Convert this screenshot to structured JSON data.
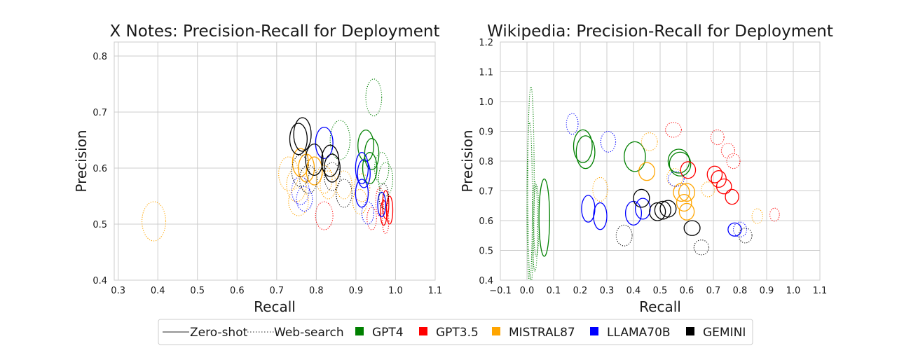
{
  "colors": {
    "GPT4": "#008000",
    "GPT3.5": "#ff0000",
    "MISTRAL87": "#ffa500",
    "LLAMA70B": "#0000ff",
    "GEMINI": "#000000",
    "grid": "#cccccc",
    "line_style_sample": "#555555"
  },
  "legend": {
    "placement": "bottom-center",
    "line_styles": [
      {
        "label": "Zero-shot",
        "style": "solid"
      },
      {
        "label": "Web-search",
        "style": "dotted"
      }
    ],
    "models": [
      {
        "label": "GPT4",
        "color": "#008000"
      },
      {
        "label": "GPT3.5",
        "color": "#ff0000"
      },
      {
        "label": "MISTRAL87",
        "color": "#ffa500"
      },
      {
        "label": "LLAMA70B",
        "color": "#0000ff"
      },
      {
        "label": "GEMINI",
        "color": "#000000"
      }
    ]
  },
  "chart_data": [
    {
      "type": "scatter",
      "marker": "ellipse",
      "title": "X Notes: Precision-Recall for Deployment",
      "xlabel": "Recall",
      "ylabel": "Precision",
      "xlim": [
        0.29,
        1.1
      ],
      "ylim": [
        0.4,
        0.825
      ],
      "xticks": [
        "0.3",
        "0.4",
        "0.5",
        "0.6",
        "0.7",
        "0.8",
        "0.9",
        "1.0",
        "1.1"
      ],
      "xtick_values": [
        0.3,
        0.4,
        0.5,
        0.6,
        0.7,
        0.8,
        0.9,
        1.0,
        1.1
      ],
      "yticks": [
        "0.4",
        "0.5",
        "0.6",
        "0.7",
        "0.8"
      ],
      "ytick_values": [
        0.4,
        0.5,
        0.6,
        0.7,
        0.8
      ],
      "grid": true,
      "points": [
        {
          "model": "GPT4",
          "style": "dotted",
          "x": 0.945,
          "y": 0.726,
          "rx": 0.02,
          "ry": 0.033
        },
        {
          "model": "GPT4",
          "style": "dotted",
          "x": 0.86,
          "y": 0.65,
          "rx": 0.025,
          "ry": 0.035
        },
        {
          "model": "GPT4",
          "style": "solid",
          "x": 0.925,
          "y": 0.64,
          "rx": 0.02,
          "ry": 0.028
        },
        {
          "model": "GPT4",
          "style": "solid",
          "x": 0.94,
          "y": 0.625,
          "rx": 0.018,
          "ry": 0.028
        },
        {
          "model": "GPT4",
          "style": "solid",
          "x": 0.935,
          "y": 0.6,
          "rx": 0.018,
          "ry": 0.028
        },
        {
          "model": "GPT4",
          "style": "dotted",
          "x": 0.965,
          "y": 0.6,
          "rx": 0.018,
          "ry": 0.028
        },
        {
          "model": "GPT4",
          "style": "dotted",
          "x": 0.975,
          "y": 0.58,
          "rx": 0.018,
          "ry": 0.03
        },
        {
          "model": "GPT3.5",
          "style": "solid",
          "x": 0.975,
          "y": 0.535,
          "rx": 0.008,
          "ry": 0.025
        },
        {
          "model": "GPT3.5",
          "style": "solid",
          "x": 0.985,
          "y": 0.525,
          "rx": 0.008,
          "ry": 0.025
        },
        {
          "model": "GPT3.5",
          "style": "solid",
          "x": 0.97,
          "y": 0.52,
          "rx": 0.008,
          "ry": 0.022
        },
        {
          "model": "GPT3.5",
          "style": "dotted",
          "x": 0.96,
          "y": 0.54,
          "rx": 0.01,
          "ry": 0.025
        },
        {
          "model": "GPT3.5",
          "style": "dotted",
          "x": 0.975,
          "y": 0.505,
          "rx": 0.008,
          "ry": 0.022
        },
        {
          "model": "GPT3.5",
          "style": "dotted",
          "x": 0.82,
          "y": 0.515,
          "rx": 0.022,
          "ry": 0.025
        },
        {
          "model": "GPT3.5",
          "style": "dotted",
          "x": 0.94,
          "y": 0.51,
          "rx": 0.012,
          "ry": 0.02
        },
        {
          "model": "MISTRAL87",
          "style": "dotted",
          "x": 0.39,
          "y": 0.505,
          "rx": 0.03,
          "ry": 0.035
        },
        {
          "model": "MISTRAL87",
          "style": "dotted",
          "x": 0.73,
          "y": 0.59,
          "rx": 0.025,
          "ry": 0.03
        },
        {
          "model": "MISTRAL87",
          "style": "dotted",
          "x": 0.75,
          "y": 0.57,
          "rx": 0.025,
          "ry": 0.03
        },
        {
          "model": "MISTRAL87",
          "style": "dotted",
          "x": 0.755,
          "y": 0.54,
          "rx": 0.025,
          "ry": 0.025
        },
        {
          "model": "MISTRAL87",
          "style": "solid",
          "x": 0.76,
          "y": 0.61,
          "rx": 0.02,
          "ry": 0.025
        },
        {
          "model": "MISTRAL87",
          "style": "solid",
          "x": 0.775,
          "y": 0.6,
          "rx": 0.02,
          "ry": 0.025
        },
        {
          "model": "MISTRAL87",
          "style": "solid",
          "x": 0.795,
          "y": 0.595,
          "rx": 0.02,
          "ry": 0.025
        },
        {
          "model": "MISTRAL87",
          "style": "dotted",
          "x": 0.82,
          "y": 0.58,
          "rx": 0.02,
          "ry": 0.025
        },
        {
          "model": "MISTRAL87",
          "style": "dotted",
          "x": 0.83,
          "y": 0.57,
          "rx": 0.02,
          "ry": 0.025
        },
        {
          "model": "MISTRAL87",
          "style": "dotted",
          "x": 0.87,
          "y": 0.57,
          "rx": 0.02,
          "ry": 0.025
        },
        {
          "model": "MISTRAL87",
          "style": "dotted",
          "x": 0.915,
          "y": 0.565,
          "rx": 0.02,
          "ry": 0.025
        },
        {
          "model": "MISTRAL87",
          "style": "dotted",
          "x": 0.91,
          "y": 0.54,
          "rx": 0.018,
          "ry": 0.022
        },
        {
          "model": "LLAMA70B",
          "style": "solid",
          "x": 0.82,
          "y": 0.645,
          "rx": 0.022,
          "ry": 0.028
        },
        {
          "model": "LLAMA70B",
          "style": "solid",
          "x": 0.915,
          "y": 0.6,
          "rx": 0.016,
          "ry": 0.028
        },
        {
          "model": "LLAMA70B",
          "style": "solid",
          "x": 0.92,
          "y": 0.59,
          "rx": 0.016,
          "ry": 0.025
        },
        {
          "model": "LLAMA70B",
          "style": "solid",
          "x": 0.915,
          "y": 0.555,
          "rx": 0.016,
          "ry": 0.025
        },
        {
          "model": "LLAMA70B",
          "style": "solid",
          "x": 0.965,
          "y": 0.535,
          "rx": 0.01,
          "ry": 0.022
        },
        {
          "model": "LLAMA70B",
          "style": "dotted",
          "x": 0.76,
          "y": 0.56,
          "rx": 0.022,
          "ry": 0.025
        },
        {
          "model": "LLAMA70B",
          "style": "dotted",
          "x": 0.77,
          "y": 0.545,
          "rx": 0.02,
          "ry": 0.022
        },
        {
          "model": "LLAMA70B",
          "style": "dotted",
          "x": 0.93,
          "y": 0.52,
          "rx": 0.015,
          "ry": 0.02
        },
        {
          "model": "GEMINI",
          "style": "solid",
          "x": 0.765,
          "y": 0.66,
          "rx": 0.022,
          "ry": 0.03
        },
        {
          "model": "GEMINI",
          "style": "solid",
          "x": 0.755,
          "y": 0.652,
          "rx": 0.022,
          "ry": 0.028
        },
        {
          "model": "GEMINI",
          "style": "solid",
          "x": 0.795,
          "y": 0.615,
          "rx": 0.022,
          "ry": 0.028
        },
        {
          "model": "GEMINI",
          "style": "solid",
          "x": 0.835,
          "y": 0.613,
          "rx": 0.022,
          "ry": 0.028
        },
        {
          "model": "GEMINI",
          "style": "solid",
          "x": 0.84,
          "y": 0.6,
          "rx": 0.02,
          "ry": 0.025
        },
        {
          "model": "GEMINI",
          "style": "dotted",
          "x": 0.76,
          "y": 0.595,
          "rx": 0.022,
          "ry": 0.028
        },
        {
          "model": "GEMINI",
          "style": "dotted",
          "x": 0.78,
          "y": 0.58,
          "rx": 0.022,
          "ry": 0.025
        },
        {
          "model": "GEMINI",
          "style": "dotted",
          "x": 0.84,
          "y": 0.585,
          "rx": 0.02,
          "ry": 0.025
        },
        {
          "model": "GEMINI",
          "style": "dotted",
          "x": 0.87,
          "y": 0.555,
          "rx": 0.02,
          "ry": 0.025
        },
        {
          "model": "GEMINI",
          "style": "dotted",
          "x": 0.97,
          "y": 0.55,
          "rx": 0.012,
          "ry": 0.022
        }
      ]
    },
    {
      "type": "scatter",
      "marker": "ellipse",
      "title": "Wikipedia: Precision-Recall for Deployment",
      "xlabel": "Recall",
      "ylabel": "Precision",
      "xlim": [
        -0.1,
        1.1
      ],
      "ylim": [
        0.4,
        1.2
      ],
      "xticks": [
        "−0.1",
        "0.0",
        "0.1",
        "0.2",
        "0.3",
        "0.4",
        "0.5",
        "0.6",
        "0.7",
        "0.8",
        "0.9",
        "1.0",
        "1.1"
      ],
      "xtick_values": [
        -0.1,
        0.0,
        0.1,
        0.2,
        0.3,
        0.4,
        0.5,
        0.6,
        0.7,
        0.8,
        0.9,
        1.0,
        1.1
      ],
      "yticks": [
        "0.4",
        "0.5",
        "0.6",
        "0.7",
        "0.8",
        "0.9",
        "1.0",
        "1.1",
        "1.2"
      ],
      "ytick_values": [
        0.4,
        0.5,
        0.6,
        0.7,
        0.8,
        0.9,
        1.0,
        1.1,
        1.2
      ],
      "grid": true,
      "points": [
        {
          "model": "GPT4",
          "style": "dotted",
          "x": 0.015,
          "y": 0.72,
          "rx": 0.012,
          "ry": 0.33
        },
        {
          "model": "GPT4",
          "style": "dotted",
          "x": 0.01,
          "y": 0.66,
          "rx": 0.01,
          "ry": 0.27
        },
        {
          "model": "GPT4",
          "style": "dotted",
          "x": 0.03,
          "y": 0.58,
          "rx": 0.01,
          "ry": 0.15
        },
        {
          "model": "GPT4",
          "style": "dotted",
          "x": 0.035,
          "y": 0.6,
          "rx": 0.01,
          "ry": 0.12
        },
        {
          "model": "GPT4",
          "style": "solid",
          "x": 0.065,
          "y": 0.61,
          "rx": 0.02,
          "ry": 0.13
        },
        {
          "model": "GPT4",
          "style": "solid",
          "x": 0.21,
          "y": 0.85,
          "rx": 0.035,
          "ry": 0.055
        },
        {
          "model": "GPT4",
          "style": "solid",
          "x": 0.22,
          "y": 0.83,
          "rx": 0.035,
          "ry": 0.055
        },
        {
          "model": "GPT4",
          "style": "solid",
          "x": 0.405,
          "y": 0.815,
          "rx": 0.04,
          "ry": 0.05
        },
        {
          "model": "GPT4",
          "style": "solid",
          "x": 0.57,
          "y": 0.8,
          "rx": 0.04,
          "ry": 0.04
        },
        {
          "model": "GPT4",
          "style": "solid",
          "x": 0.575,
          "y": 0.79,
          "rx": 0.04,
          "ry": 0.04
        },
        {
          "model": "GPT3.5",
          "style": "dotted",
          "x": 0.55,
          "y": 0.905,
          "rx": 0.03,
          "ry": 0.025
        },
        {
          "model": "GPT3.5",
          "style": "dotted",
          "x": 0.715,
          "y": 0.88,
          "rx": 0.025,
          "ry": 0.025
        },
        {
          "model": "GPT3.5",
          "style": "dotted",
          "x": 0.755,
          "y": 0.835,
          "rx": 0.025,
          "ry": 0.025
        },
        {
          "model": "GPT3.5",
          "style": "dotted",
          "x": 0.775,
          "y": 0.8,
          "rx": 0.025,
          "ry": 0.025
        },
        {
          "model": "GPT3.5",
          "style": "solid",
          "x": 0.605,
          "y": 0.77,
          "rx": 0.028,
          "ry": 0.028
        },
        {
          "model": "GPT3.5",
          "style": "solid",
          "x": 0.705,
          "y": 0.755,
          "rx": 0.028,
          "ry": 0.028
        },
        {
          "model": "GPT3.5",
          "style": "solid",
          "x": 0.72,
          "y": 0.74,
          "rx": 0.028,
          "ry": 0.028
        },
        {
          "model": "GPT3.5",
          "style": "solid",
          "x": 0.74,
          "y": 0.715,
          "rx": 0.028,
          "ry": 0.025
        },
        {
          "model": "GPT3.5",
          "style": "solid",
          "x": 0.77,
          "y": 0.68,
          "rx": 0.025,
          "ry": 0.025
        },
        {
          "model": "GPT3.5",
          "style": "dotted",
          "x": 0.93,
          "y": 0.62,
          "rx": 0.018,
          "ry": 0.022
        },
        {
          "model": "MISTRAL87",
          "style": "dotted",
          "x": 0.275,
          "y": 0.705,
          "rx": 0.028,
          "ry": 0.04
        },
        {
          "model": "MISTRAL87",
          "style": "dotted",
          "x": 0.46,
          "y": 0.865,
          "rx": 0.03,
          "ry": 0.03
        },
        {
          "model": "MISTRAL87",
          "style": "solid",
          "x": 0.45,
          "y": 0.765,
          "rx": 0.03,
          "ry": 0.03
        },
        {
          "model": "MISTRAL87",
          "style": "dotted",
          "x": 0.555,
          "y": 0.745,
          "rx": 0.03,
          "ry": 0.03
        },
        {
          "model": "MISTRAL87",
          "style": "solid",
          "x": 0.58,
          "y": 0.695,
          "rx": 0.03,
          "ry": 0.03
        },
        {
          "model": "MISTRAL87",
          "style": "solid",
          "x": 0.6,
          "y": 0.695,
          "rx": 0.03,
          "ry": 0.03
        },
        {
          "model": "MISTRAL87",
          "style": "solid",
          "x": 0.59,
          "y": 0.66,
          "rx": 0.028,
          "ry": 0.028
        },
        {
          "model": "MISTRAL87",
          "style": "solid",
          "x": 0.6,
          "y": 0.63,
          "rx": 0.028,
          "ry": 0.028
        },
        {
          "model": "MISTRAL87",
          "style": "dotted",
          "x": 0.68,
          "y": 0.705,
          "rx": 0.025,
          "ry": 0.025
        },
        {
          "model": "MISTRAL87",
          "style": "dotted",
          "x": 0.865,
          "y": 0.615,
          "rx": 0.02,
          "ry": 0.025
        },
        {
          "model": "LLAMA70B",
          "style": "dotted",
          "x": 0.17,
          "y": 0.925,
          "rx": 0.022,
          "ry": 0.035
        },
        {
          "model": "LLAMA70B",
          "style": "dotted",
          "x": 0.305,
          "y": 0.865,
          "rx": 0.028,
          "ry": 0.035
        },
        {
          "model": "LLAMA70B",
          "style": "dotted",
          "x": 0.56,
          "y": 0.74,
          "rx": 0.03,
          "ry": 0.025
        },
        {
          "model": "LLAMA70B",
          "style": "solid",
          "x": 0.23,
          "y": 0.64,
          "rx": 0.025,
          "ry": 0.045
        },
        {
          "model": "LLAMA70B",
          "style": "solid",
          "x": 0.275,
          "y": 0.615,
          "rx": 0.025,
          "ry": 0.045
        },
        {
          "model": "LLAMA70B",
          "style": "solid",
          "x": 0.4,
          "y": 0.625,
          "rx": 0.03,
          "ry": 0.04
        },
        {
          "model": "LLAMA70B",
          "style": "solid",
          "x": 0.435,
          "y": 0.64,
          "rx": 0.028,
          "ry": 0.035
        },
        {
          "model": "LLAMA70B",
          "style": "solid",
          "x": 0.78,
          "y": 0.57,
          "rx": 0.025,
          "ry": 0.022
        },
        {
          "model": "LLAMA70B",
          "style": "dotted",
          "x": 0.8,
          "y": 0.57,
          "rx": 0.025,
          "ry": 0.025
        },
        {
          "model": "GEMINI",
          "style": "solid",
          "x": 0.43,
          "y": 0.675,
          "rx": 0.03,
          "ry": 0.03
        },
        {
          "model": "GEMINI",
          "style": "solid",
          "x": 0.49,
          "y": 0.63,
          "rx": 0.03,
          "ry": 0.03
        },
        {
          "model": "GEMINI",
          "style": "solid",
          "x": 0.51,
          "y": 0.635,
          "rx": 0.03,
          "ry": 0.03
        },
        {
          "model": "GEMINI",
          "style": "solid",
          "x": 0.53,
          "y": 0.64,
          "rx": 0.03,
          "ry": 0.028
        },
        {
          "model": "GEMINI",
          "style": "solid",
          "x": 0.62,
          "y": 0.575,
          "rx": 0.03,
          "ry": 0.025
        },
        {
          "model": "GEMINI",
          "style": "dotted",
          "x": 0.365,
          "y": 0.55,
          "rx": 0.03,
          "ry": 0.035
        },
        {
          "model": "GEMINI",
          "style": "dotted",
          "x": 0.655,
          "y": 0.51,
          "rx": 0.028,
          "ry": 0.025
        },
        {
          "model": "GEMINI",
          "style": "dotted",
          "x": 0.82,
          "y": 0.55,
          "rx": 0.025,
          "ry": 0.025
        }
      ]
    }
  ]
}
